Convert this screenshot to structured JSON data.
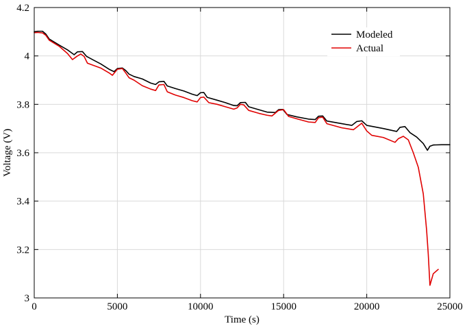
{
  "chart_data": {
    "type": "line",
    "xlabel": "Time (s)",
    "ylabel": "Voltage (V)",
    "xlim": [
      0,
      25000
    ],
    "ylim": [
      3,
      4.2
    ],
    "xticks": [
      0,
      5000,
      10000,
      15000,
      20000,
      25000
    ],
    "yticks": [
      3,
      3.2,
      3.4,
      3.6,
      3.8,
      4,
      4.2
    ],
    "xtick_labels": [
      "0",
      "5000",
      "10000",
      "15000",
      "20000",
      "25000"
    ],
    "ytick_labels": [
      "3",
      "3.2",
      "3.4",
      "3.6",
      "3.8",
      "4",
      "4.2"
    ],
    "grid": true,
    "legend_position": "top-right",
    "series": [
      {
        "name": "Modeled",
        "color": "#000000",
        "points": [
          [
            0,
            4.1
          ],
          [
            200,
            4.102
          ],
          [
            500,
            4.102
          ],
          [
            700,
            4.09
          ],
          [
            900,
            4.07
          ],
          [
            1500,
            4.045
          ],
          [
            2000,
            4.025
          ],
          [
            2400,
            4.005
          ],
          [
            2600,
            4.017
          ],
          [
            2900,
            4.018
          ],
          [
            3150,
            3.998
          ],
          [
            3500,
            3.985
          ],
          [
            4000,
            3.967
          ],
          [
            4500,
            3.945
          ],
          [
            4800,
            3.935
          ],
          [
            5000,
            3.948
          ],
          [
            5300,
            3.95
          ],
          [
            5500,
            3.94
          ],
          [
            5700,
            3.925
          ],
          [
            6000,
            3.915
          ],
          [
            6500,
            3.905
          ],
          [
            7000,
            3.888
          ],
          [
            7300,
            3.882
          ],
          [
            7500,
            3.893
          ],
          [
            7800,
            3.895
          ],
          [
            8000,
            3.876
          ],
          [
            8500,
            3.865
          ],
          [
            9000,
            3.855
          ],
          [
            9500,
            3.842
          ],
          [
            9800,
            3.836
          ],
          [
            10000,
            3.848
          ],
          [
            10200,
            3.849
          ],
          [
            10400,
            3.829
          ],
          [
            11000,
            3.817
          ],
          [
            11500,
            3.807
          ],
          [
            12000,
            3.795
          ],
          [
            12200,
            3.794
          ],
          [
            12400,
            3.807
          ],
          [
            12700,
            3.808
          ],
          [
            12900,
            3.79
          ],
          [
            13500,
            3.778
          ],
          [
            14000,
            3.768
          ],
          [
            14500,
            3.766
          ],
          [
            14700,
            3.778
          ],
          [
            14950,
            3.779
          ],
          [
            15200,
            3.758
          ],
          [
            15800,
            3.748
          ],
          [
            16500,
            3.739
          ],
          [
            16900,
            3.737
          ],
          [
            17100,
            3.751
          ],
          [
            17350,
            3.752
          ],
          [
            17600,
            3.731
          ],
          [
            18500,
            3.72
          ],
          [
            19100,
            3.713
          ],
          [
            19400,
            3.729
          ],
          [
            19700,
            3.732
          ],
          [
            20000,
            3.713
          ],
          [
            21000,
            3.7
          ],
          [
            21800,
            3.688
          ],
          [
            22000,
            3.705
          ],
          [
            22300,
            3.708
          ],
          [
            22600,
            3.683
          ],
          [
            23000,
            3.665
          ],
          [
            23400,
            3.638
          ],
          [
            23650,
            3.61
          ],
          [
            23800,
            3.627
          ],
          [
            24000,
            3.632
          ],
          [
            24500,
            3.633
          ],
          [
            25000,
            3.633
          ]
        ]
      },
      {
        "name": "Actual",
        "color": "#e00000",
        "points": [
          [
            0,
            4.096
          ],
          [
            200,
            4.097
          ],
          [
            500,
            4.095
          ],
          [
            700,
            4.085
          ],
          [
            900,
            4.065
          ],
          [
            1500,
            4.04
          ],
          [
            2000,
            4.01
          ],
          [
            2300,
            3.985
          ],
          [
            2600,
            4.0
          ],
          [
            2800,
            4.008
          ],
          [
            3000,
            3.998
          ],
          [
            3200,
            3.97
          ],
          [
            4000,
            3.95
          ],
          [
            4500,
            3.93
          ],
          [
            4700,
            3.92
          ],
          [
            5000,
            3.945
          ],
          [
            5300,
            3.948
          ],
          [
            5500,
            3.93
          ],
          [
            5700,
            3.91
          ],
          [
            6000,
            3.9
          ],
          [
            6500,
            3.877
          ],
          [
            7000,
            3.863
          ],
          [
            7300,
            3.857
          ],
          [
            7500,
            3.88
          ],
          [
            7800,
            3.882
          ],
          [
            8000,
            3.852
          ],
          [
            8500,
            3.838
          ],
          [
            9000,
            3.828
          ],
          [
            9500,
            3.815
          ],
          [
            9800,
            3.81
          ],
          [
            10000,
            3.828
          ],
          [
            10200,
            3.83
          ],
          [
            10500,
            3.807
          ],
          [
            11000,
            3.8
          ],
          [
            11500,
            3.79
          ],
          [
            12000,
            3.78
          ],
          [
            12200,
            3.785
          ],
          [
            12400,
            3.8
          ],
          [
            12600,
            3.798
          ],
          [
            12900,
            3.775
          ],
          [
            13500,
            3.763
          ],
          [
            14000,
            3.755
          ],
          [
            14300,
            3.752
          ],
          [
            14700,
            3.775
          ],
          [
            15000,
            3.778
          ],
          [
            15300,
            3.75
          ],
          [
            15800,
            3.74
          ],
          [
            16500,
            3.727
          ],
          [
            16900,
            3.725
          ],
          [
            17100,
            3.745
          ],
          [
            17350,
            3.747
          ],
          [
            17600,
            3.72
          ],
          [
            18500,
            3.703
          ],
          [
            19200,
            3.695
          ],
          [
            19700,
            3.722
          ],
          [
            20000,
            3.69
          ],
          [
            20300,
            3.672
          ],
          [
            21000,
            3.663
          ],
          [
            21700,
            3.643
          ],
          [
            21900,
            3.658
          ],
          [
            22200,
            3.668
          ],
          [
            22500,
            3.653
          ],
          [
            22800,
            3.6
          ],
          [
            23100,
            3.54
          ],
          [
            23400,
            3.43
          ],
          [
            23600,
            3.28
          ],
          [
            23700,
            3.18
          ],
          [
            23800,
            3.052
          ],
          [
            24000,
            3.1
          ],
          [
            24300,
            3.118
          ]
        ]
      }
    ]
  }
}
